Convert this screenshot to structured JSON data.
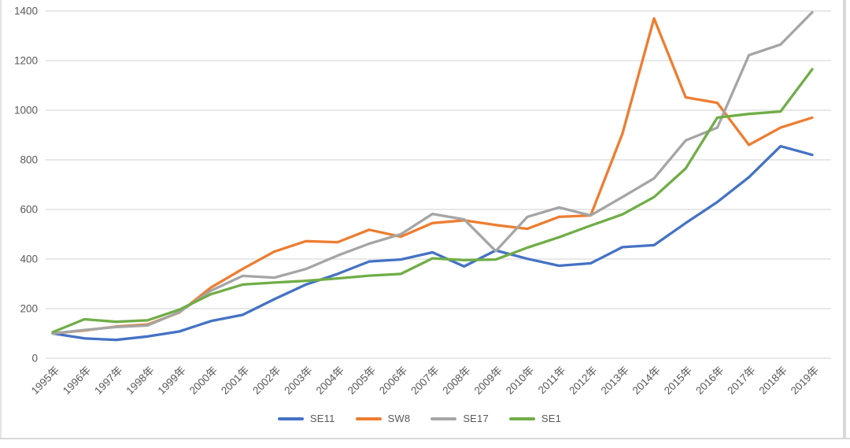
{
  "chart_data": {
    "type": "line",
    "title": "",
    "categories": [
      "1995年",
      "1996年",
      "1997年",
      "1998年",
      "1999年",
      "2000年",
      "2001年",
      "2002年",
      "2003年",
      "2004年",
      "2005年",
      "2006年",
      "2007年",
      "2008年",
      "2009年",
      "2010年",
      "2011年",
      "2012年",
      "2013年",
      "2014年",
      "2015年",
      "2016年",
      "2017年",
      "2018年",
      "2019年"
    ],
    "y_ticks": [
      0,
      200,
      400,
      600,
      800,
      1000,
      1200,
      1400
    ],
    "ylim": [
      0,
      1400
    ],
    "grid": true,
    "grid_color": "#d9d9d9",
    "tick_label_color": "#595959",
    "legend_position": "bottom",
    "series": [
      {
        "name": "SE11",
        "color": "#4472C4",
        "values": [
          100,
          80,
          74,
          88,
          108,
          150,
          175,
          238,
          297,
          340,
          390,
          398,
          427,
          370,
          435,
          401,
          373,
          383,
          448,
          456,
          545,
          630,
          730,
          855,
          820
        ]
      },
      {
        "name": "SW8",
        "color": "#ED7D31",
        "values": [
          100,
          112,
          128,
          136,
          184,
          285,
          360,
          430,
          472,
          468,
          518,
          490,
          545,
          556,
          537,
          522,
          570,
          576,
          905,
          1370,
          1052,
          1030,
          860,
          930,
          970
        ]
      },
      {
        "name": "SE17",
        "color": "#A5A5A5",
        "values": [
          100,
          114,
          126,
          132,
          186,
          272,
          332,
          325,
          360,
          414,
          462,
          500,
          582,
          560,
          432,
          570,
          608,
          576,
          650,
          725,
          878,
          930,
          1222,
          1265,
          1395
        ]
      },
      {
        "name": "SE1",
        "color": "#70AD47",
        "values": [
          105,
          157,
          147,
          153,
          196,
          258,
          297,
          305,
          312,
          322,
          333,
          340,
          403,
          396,
          398,
          446,
          488,
          535,
          580,
          650,
          765,
          970,
          985,
          995,
          1165
        ]
      }
    ]
  }
}
